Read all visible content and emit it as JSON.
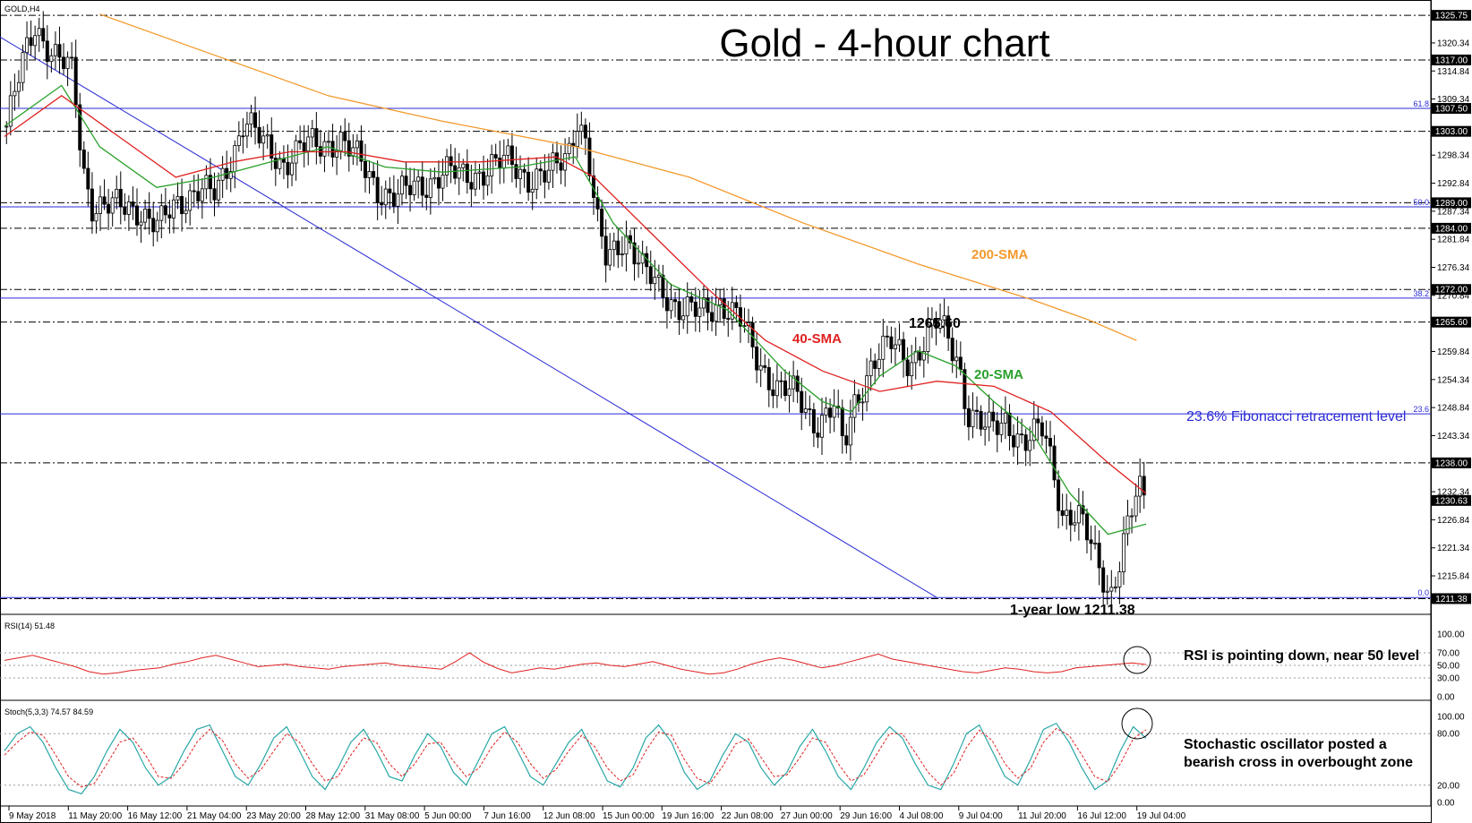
{
  "chart_title": "Gold - 4-hour chart",
  "symbol_label": "GOLD,H4",
  "colors": {
    "bull": "#1a9a1a",
    "bear": "#e0201e",
    "sma20": "#2aa02a",
    "sma40": "#e02020",
    "sma200": "#f39a2e",
    "trendline": "#2a2ad6",
    "fib": "#2a2ad6",
    "rsi": "#e02020",
    "stoch_main": "#2aa7a7",
    "stoch_signal": "#e02020"
  },
  "annotations": {
    "sma200": "200-SMA",
    "sma40": "40-SMA",
    "sma20": "20-SMA",
    "high_label": "1265.60",
    "fib_label": "23.6% Fibonacci retracement level",
    "low_label": "1-year low 1211.38",
    "rsi_note": "RSI is pointing down, near 50 level",
    "stoch_note_1": "Stochastic oscillator posted a",
    "stoch_note_2": "bearish cross in overbought zone"
  },
  "rsi_header": "RSI(14) 51.48",
  "stoch_header": "Stoch(5,3,3) 74.57 84.59",
  "chart_data": {
    "type": "candlestick",
    "title": "Gold - 4-hour chart",
    "price_axis": {
      "min": 1209,
      "max": 1327,
      "ticks": [
        "1320.34",
        "1314.84",
        "1309.34",
        "1298.34",
        "1292.84",
        "1287.34",
        "1281.84",
        "1276.34",
        "1270.84",
        "1259.84",
        "1254.34",
        "1248.84",
        "1243.34",
        "1232.34",
        "1226.84",
        "1221.34",
        "1215.84"
      ],
      "badges": [
        "1325.75",
        "1317.00",
        "1307.50",
        "1303.00",
        "1289.00",
        "1284.00",
        "1272.00",
        "1265.60",
        "1238.00",
        "1230.63",
        "1211.38"
      ]
    },
    "x_tick_labels": [
      "9 May 2018",
      "11 May 20:00",
      "16 May 12:00",
      "21 May 04:00",
      "23 May 20:00",
      "28 May 12:00",
      "31 May 08:00",
      "5 Jun 00:00",
      "7 Jun 16:00",
      "12 Jun 08:00",
      "15 Jun 00:00",
      "19 Jun 16:00",
      "22 Jun 08:00",
      "27 Jun 00:00",
      "29 Jun 16:00",
      "4 Jul 08:00",
      "9 Jul 04:00",
      "11 Jul 20:00",
      "16 Jul 12:00",
      "19 Jul 04:00"
    ],
    "horizontal_levels": [
      {
        "value": 1325.75,
        "style": "dash-dot"
      },
      {
        "value": 1317.0,
        "style": "dash-dot"
      },
      {
        "value": 1307.5,
        "style": "dash-dot"
      },
      {
        "value": 1303.0,
        "style": "dash-dot"
      },
      {
        "value": 1289.0,
        "style": "dash-dot"
      },
      {
        "value": 1284.0,
        "style": "dash-dot"
      },
      {
        "value": 1272.0,
        "style": "dash-dot"
      },
      {
        "value": 1265.6,
        "style": "dash-dot"
      },
      {
        "value": 1238.0,
        "style": "dash-dot"
      },
      {
        "value": 1211.38,
        "style": "dash-dot"
      }
    ],
    "fibonacci": [
      {
        "label": "61.8",
        "value": 1307.5
      },
      {
        "label": "50.0",
        "value": 1288.2
      },
      {
        "label": "38.2",
        "value": 1270.3
      },
      {
        "label": "23.6",
        "value": 1247.6
      },
      {
        "label": "0.0",
        "value": 1211.6
      }
    ],
    "price_path": [
      [
        0,
        1304
      ],
      [
        2,
        1318
      ],
      [
        3,
        1324
      ],
      [
        5,
        1318
      ],
      [
        7,
        1314
      ],
      [
        8,
        1296
      ],
      [
        9,
        1289
      ],
      [
        11,
        1288
      ],
      [
        14,
        1288
      ],
      [
        16,
        1284
      ],
      [
        18,
        1289
      ],
      [
        20,
        1292
      ],
      [
        22,
        1290
      ],
      [
        24,
        1300
      ],
      [
        25,
        1306
      ],
      [
        27,
        1300
      ],
      [
        29,
        1297
      ],
      [
        31,
        1300
      ],
      [
        33,
        1300
      ],
      [
        35,
        1302
      ],
      [
        37,
        1297
      ],
      [
        39,
        1292
      ],
      [
        41,
        1290
      ],
      [
        43,
        1292
      ],
      [
        46,
        1295
      ],
      [
        48,
        1294
      ],
      [
        51,
        1296
      ],
      [
        53,
        1297
      ],
      [
        55,
        1294
      ],
      [
        57,
        1294
      ],
      [
        59,
        1299
      ],
      [
        60,
        1306
      ],
      [
        61,
        1300
      ],
      [
        62,
        1285
      ],
      [
        63,
        1278
      ],
      [
        65,
        1283
      ],
      [
        67,
        1275
      ],
      [
        69,
        1272
      ],
      [
        71,
        1268
      ],
      [
        73,
        1267
      ],
      [
        75,
        1270
      ],
      [
        77,
        1266
      ],
      [
        79,
        1258
      ],
      [
        81,
        1253
      ],
      [
        83,
        1251
      ],
      [
        85,
        1246
      ],
      [
        87,
        1249
      ],
      [
        88,
        1240
      ],
      [
        89,
        1249
      ],
      [
        91,
        1258
      ],
      [
        93,
        1261
      ],
      [
        95,
        1258
      ],
      [
        97,
        1263
      ],
      [
        98,
        1265.6
      ],
      [
        100,
        1259
      ],
      [
        101,
        1248
      ],
      [
        103,
        1244
      ],
      [
        105,
        1247
      ],
      [
        107,
        1241
      ],
      [
        109,
        1245
      ],
      [
        110,
        1238
      ],
      [
        111,
        1228
      ],
      [
        113,
        1226
      ],
      [
        114,
        1222
      ],
      [
        115,
        1218
      ],
      [
        116,
        1212
      ],
      [
        117,
        1218
      ],
      [
        118,
        1226
      ],
      [
        119,
        1233
      ],
      [
        120,
        1231
      ]
    ],
    "series": [
      {
        "name": "20-SMA",
        "values": [
          [
            0,
            1304
          ],
          [
            6,
            1312
          ],
          [
            10,
            1300
          ],
          [
            16,
            1292
          ],
          [
            22,
            1294
          ],
          [
            28,
            1297
          ],
          [
            34,
            1300
          ],
          [
            40,
            1296
          ],
          [
            46,
            1295
          ],
          [
            54,
            1296
          ],
          [
            60,
            1298
          ],
          [
            64,
            1285
          ],
          [
            70,
            1273
          ],
          [
            76,
            1268
          ],
          [
            82,
            1256
          ],
          [
            86,
            1250
          ],
          [
            89,
            1248
          ],
          [
            92,
            1255
          ],
          [
            96,
            1260
          ],
          [
            100,
            1257
          ],
          [
            104,
            1250
          ],
          [
            108,
            1244
          ],
          [
            112,
            1232
          ],
          [
            116,
            1224
          ],
          [
            118,
            1225
          ],
          [
            120,
            1226
          ]
        ]
      },
      {
        "name": "40-SMA",
        "values": [
          [
            0,
            1302
          ],
          [
            6,
            1310
          ],
          [
            12,
            1302
          ],
          [
            18,
            1294
          ],
          [
            24,
            1297
          ],
          [
            30,
            1299
          ],
          [
            36,
            1299
          ],
          [
            42,
            1297
          ],
          [
            50,
            1297
          ],
          [
            58,
            1298
          ],
          [
            62,
            1294
          ],
          [
            68,
            1283
          ],
          [
            74,
            1272
          ],
          [
            80,
            1262
          ],
          [
            86,
            1256
          ],
          [
            92,
            1252
          ],
          [
            98,
            1254
          ],
          [
            104,
            1253
          ],
          [
            110,
            1248
          ],
          [
            116,
            1238
          ],
          [
            120,
            1232
          ]
        ]
      },
      {
        "name": "200-SMA",
        "values": [
          [
            10,
            1326
          ],
          [
            22,
            1318
          ],
          [
            34,
            1310
          ],
          [
            46,
            1305
          ],
          [
            60,
            1300
          ],
          [
            72,
            1294
          ],
          [
            84,
            1285
          ],
          [
            96,
            1277
          ],
          [
            108,
            1270
          ],
          [
            114,
            1266
          ],
          [
            119,
            1262
          ]
        ]
      }
    ],
    "rsi": {
      "name": "RSI(14)",
      "last": 51.48,
      "levels": [
        70,
        50,
        30
      ],
      "axis_labels": [
        "100.00",
        "70.00",
        "50.00",
        "30.00",
        "0.00"
      ],
      "values": [
        58,
        62,
        66,
        60,
        54,
        48,
        40,
        36,
        38,
        42,
        44,
        46,
        52,
        56,
        62,
        66,
        60,
        54,
        48,
        50,
        52,
        48,
        46,
        44,
        48,
        50,
        52,
        54,
        50,
        48,
        46,
        44,
        56,
        70,
        55,
        45,
        38,
        42,
        46,
        44,
        48,
        52,
        54,
        50,
        48,
        52,
        56,
        50,
        44,
        40,
        36,
        38,
        44,
        52,
        58,
        62,
        58,
        52,
        46,
        50,
        56,
        62,
        68,
        60,
        56,
        52,
        48,
        44,
        40,
        38,
        42,
        46,
        44,
        40,
        38,
        40,
        46,
        48,
        50,
        52,
        54,
        51.48
      ]
    },
    "stochastic": {
      "name": "Stoch(5,3,3)",
      "main_last": 74.57,
      "signal_last": 84.59,
      "levels": [
        80,
        20
      ],
      "axis_labels": [
        "100.00",
        "80.00",
        "20.00",
        "0.00"
      ],
      "values": [
        60,
        80,
        88,
        70,
        40,
        15,
        10,
        30,
        60,
        85,
        70,
        40,
        20,
        30,
        60,
        85,
        90,
        60,
        30,
        20,
        45,
        75,
        88,
        60,
        30,
        15,
        40,
        70,
        85,
        60,
        30,
        25,
        55,
        80,
        65,
        35,
        20,
        50,
        80,
        88,
        60,
        30,
        20,
        45,
        70,
        85,
        55,
        25,
        18,
        40,
        75,
        90,
        70,
        35,
        15,
        25,
        55,
        80,
        70,
        40,
        20,
        35,
        65,
        85,
        60,
        30,
        15,
        40,
        70,
        88,
        75,
        45,
        20,
        15,
        45,
        80,
        90,
        60,
        30,
        20,
        50,
        85,
        92,
        70,
        40,
        15,
        25,
        60,
        88,
        74.57
      ],
      "signal": [
        55,
        70,
        82,
        78,
        55,
        30,
        18,
        22,
        45,
        70,
        75,
        55,
        30,
        28,
        45,
        70,
        85,
        72,
        45,
        28,
        38,
        60,
        80,
        70,
        45,
        25,
        30,
        55,
        75,
        70,
        45,
        30,
        45,
        68,
        70,
        48,
        30,
        40,
        65,
        82,
        70,
        45,
        28,
        38,
        60,
        78,
        65,
        40,
        25,
        32,
        60,
        82,
        78,
        50,
        28,
        22,
        42,
        68,
        74,
        52,
        30,
        32,
        52,
        75,
        70,
        45,
        25,
        32,
        56,
        80,
        80,
        58,
        35,
        20,
        34,
        64,
        84,
        72,
        45,
        28,
        40,
        70,
        86,
        78,
        55,
        30,
        24,
        45,
        74,
        84.59
      ]
    }
  }
}
